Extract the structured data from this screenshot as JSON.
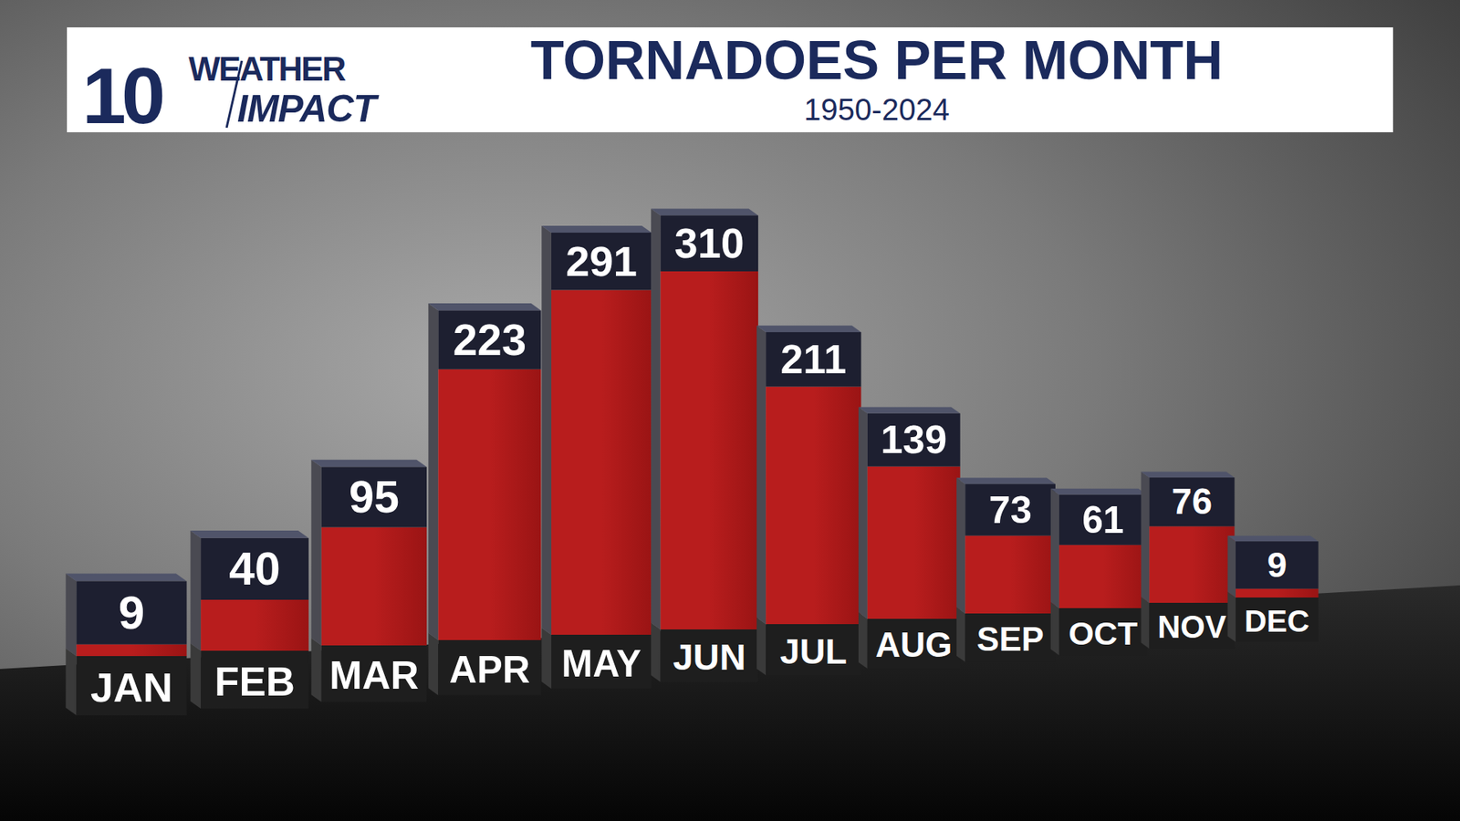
{
  "chart_data": {
    "type": "bar",
    "title": "TORNADOES PER MONTH",
    "subtitle": "1950-2024",
    "annotations": [
      "10",
      "WEATHER",
      "IMPACT"
    ],
    "categories": [
      "JAN",
      "FEB",
      "MAR",
      "APR",
      "MAY",
      "JUN",
      "JUL",
      "AUG",
      "SEP",
      "OCT",
      "NOV",
      "DEC"
    ],
    "values": [
      9,
      40,
      95,
      223,
      291,
      310,
      211,
      139,
      73,
      61,
      76,
      9
    ],
    "color": "#b81d1d",
    "ylim": [
      0,
      350
    ],
    "grid": false,
    "data_labels": true,
    "tick_labels": "x"
  }
}
